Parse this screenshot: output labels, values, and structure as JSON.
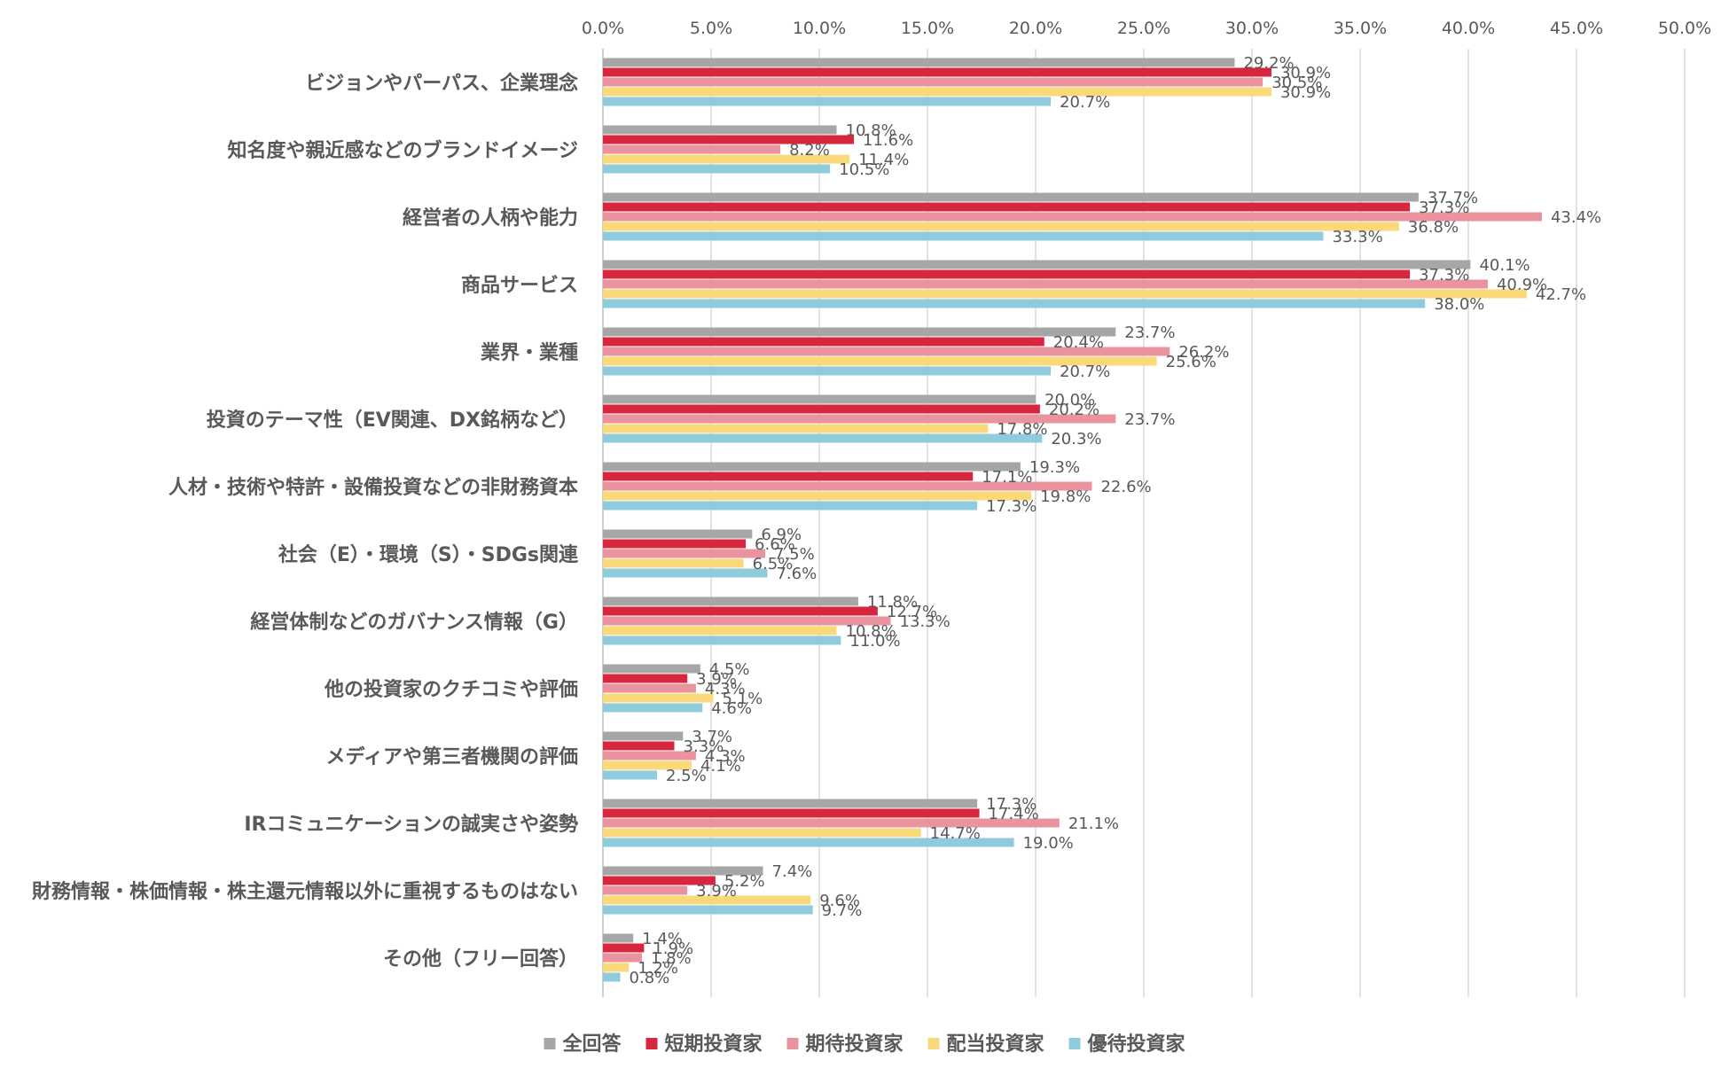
{
  "chart_data": {
    "type": "bar",
    "orientation": "horizontal",
    "xlim": [
      0,
      50
    ],
    "x_ticks": [
      "0.0%",
      "5.0%",
      "10.0%",
      "15.0%",
      "20.0%",
      "25.0%",
      "30.0%",
      "35.0%",
      "40.0%",
      "45.0%",
      "50.0%"
    ],
    "x_tick_values": [
      0,
      5,
      10,
      15,
      20,
      25,
      30,
      35,
      40,
      45,
      50
    ],
    "grid": true,
    "legend_position": "bottom",
    "categories": [
      "ビジョンやパーパス、企業理念",
      "知名度や親近感などのブランドイメージ",
      "経営者の人柄や能力",
      "商品サービス",
      "業界・業種",
      "投資のテーマ性（EV関連、DX銘柄など）",
      "人材・技術や特許・設備投資などの非財務資本",
      "社会（E）・環境（S）・SDGs関連",
      "経営体制などのガバナンス情報（G）",
      "他の投資家のクチコミや評価",
      "メディアや第三者機関の評価",
      "IRコミュニケーションの誠実さや姿勢",
      "財務情報・株価情報・株主還元情報以外に重視するものはない",
      "その他（フリー回答）"
    ],
    "series": [
      {
        "name": "全回答",
        "color": "#a6a6a6",
        "values": [
          29.2,
          10.8,
          37.7,
          40.1,
          23.7,
          20.0,
          19.3,
          6.9,
          11.8,
          4.5,
          3.7,
          17.3,
          7.4,
          1.4
        ],
        "labels": [
          "29.2%",
          "10.8%",
          "37.7%",
          "40.1%",
          "23.7%",
          "20.0%",
          "19.3%",
          "6.9%",
          "11.8%",
          "4.5%",
          "3.7%",
          "17.3%",
          "7.4%",
          "1.4%"
        ]
      },
      {
        "name": "短期投資家",
        "color": "#d7263d",
        "values": [
          30.9,
          11.6,
          37.3,
          37.3,
          20.4,
          20.2,
          17.1,
          6.6,
          12.7,
          3.9,
          3.3,
          17.4,
          5.2,
          1.9
        ],
        "labels": [
          "30.9%",
          "11.6%",
          "37.3%",
          "37.3%",
          "20.4%",
          "20.2%",
          "17.1%",
          "6.6%",
          "12.7%",
          "3.9%",
          "3.3%",
          "17.4%",
          "5.2%",
          "1.9%"
        ]
      },
      {
        "name": "期待投資家",
        "color": "#e8939e",
        "values": [
          30.5,
          8.2,
          43.4,
          40.9,
          26.2,
          23.7,
          22.6,
          7.5,
          13.3,
          4.3,
          4.3,
          21.1,
          3.9,
          1.8
        ],
        "labels": [
          "30.5%",
          "8.2%",
          "43.4%",
          "40.9%",
          "26.2%",
          "23.7%",
          "22.6%",
          "7.5%",
          "13.3%",
          "4.3%",
          "4.3%",
          "21.1%",
          "3.9%",
          "1.8%"
        ]
      },
      {
        "name": "配当投資家",
        "color": "#fad97a",
        "values": [
          30.9,
          11.4,
          36.8,
          42.7,
          25.6,
          17.8,
          19.8,
          6.5,
          10.8,
          5.1,
          4.1,
          14.7,
          9.6,
          1.2
        ],
        "labels": [
          "30.9%",
          "11.4%",
          "36.8%",
          "42.7%",
          "25.6%",
          "17.8%",
          "19.8%",
          "6.5%",
          "10.8%",
          "5.1%",
          "4.1%",
          "14.7%",
          "9.6%",
          "1.2%"
        ]
      },
      {
        "name": "優待投資家",
        "color": "#8dcbdd",
        "values": [
          20.7,
          10.5,
          33.3,
          38.0,
          20.7,
          20.3,
          17.3,
          7.6,
          11.0,
          4.6,
          2.5,
          19.0,
          9.7,
          0.8
        ],
        "labels": [
          "20.7%",
          "10.5%",
          "33.3%",
          "38.0%",
          "20.7%",
          "20.3%",
          "17.3%",
          "7.6%",
          "11.0%",
          "4.6%",
          "2.5%",
          "19.0%",
          "9.7%",
          "0.8%"
        ]
      }
    ],
    "title": "",
    "xlabel": "",
    "ylabel": ""
  }
}
